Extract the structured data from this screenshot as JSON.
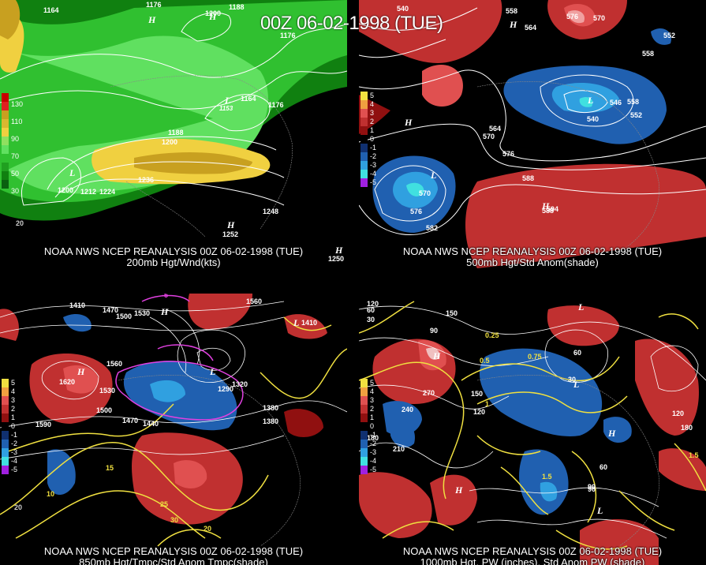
{
  "main_title": "00Z 06-02-1998 (TUE)",
  "panels": [
    {
      "id": "200mb",
      "caption1": "NOAA NWS NCEP REANALYSIS 00Z 06-02-1998 (TUE)",
      "caption2": "200mb Hgt/Wnd(kts)",
      "legend": [
        "130",
        "110",
        "90",
        "70",
        "50",
        "30"
      ],
      "legend_colors": [
        "#c80000",
        "#c8a020",
        "#f0d040",
        "#30c030",
        "#60e060",
        "#108010"
      ],
      "contour_labels": [
        "1164",
        "1176",
        "1200",
        "1188",
        "1176",
        "1164",
        "1176",
        "1188",
        "1200",
        "1236",
        "1200",
        "1212",
        "1224",
        "1248",
        "1252",
        "1250",
        "20",
        "1153"
      ],
      "hl_marks": [
        "H",
        "L",
        "L",
        "H",
        "H",
        "H"
      ]
    },
    {
      "id": "500mb",
      "caption1": "NOAA NWS NCEP REANALYSIS 00Z 06-02-1998 (TUE)",
      "caption2": "500mb Hgt/Std Anom(shade)",
      "legend": [
        "5",
        "4",
        "3",
        "2",
        "1",
        "0",
        "-1",
        "-2",
        "-3",
        "-4",
        "-5"
      ],
      "legend_colors": [
        "#f0e040",
        "#f0a040",
        "#e05050",
        "#c03030",
        "#901010",
        "#000000",
        "#103070",
        "#2060b0",
        "#30a0e0",
        "#40e0e0",
        "#a020e0"
      ],
      "contour_labels": [
        "540",
        "558",
        "576",
        "570",
        "552",
        "558",
        "564",
        "570",
        "576",
        "588",
        "594",
        "582",
        "576",
        "570",
        "564",
        "552",
        "546",
        "540",
        "558",
        "588"
      ],
      "hl_marks": [
        "H",
        "L",
        "H",
        "L",
        "H"
      ]
    },
    {
      "id": "850mb",
      "caption1": "NOAA NWS NCEP REANALYSIS 00Z 06-02-1998 (TUE)",
      "caption2": "850mb Hgt/Tmpc/Std Anom Tmpc(shade)",
      "legend": [
        "5",
        "4",
        "3",
        "2",
        "1",
        "0",
        "-1",
        "-2",
        "-3",
        "-4",
        "-5"
      ],
      "legend_colors": [
        "#f0e040",
        "#f0a040",
        "#e05050",
        "#c03030",
        "#901010",
        "#000000",
        "#103070",
        "#2060b0",
        "#30a0e0",
        "#40e0e0",
        "#a020e0"
      ],
      "contour_labels": [
        "1380",
        "1410",
        "1470",
        "1500",
        "1530",
        "1560",
        "1590",
        "1620",
        "1560",
        "1530",
        "1500",
        "1470",
        "1440",
        "1410",
        "1380",
        "1290",
        "1320",
        "10",
        "15",
        "20",
        "25",
        "30",
        "-5",
        "20"
      ],
      "hl_marks": [
        "H",
        "L",
        "H",
        "L"
      ]
    },
    {
      "id": "1000mb",
      "caption1": "NOAA NWS NCEP REANALYSIS 00Z 06-02-1998 (TUE)",
      "caption2": "1000mb Hgt, PW (inches), Std Anom PW (shade)",
      "legend": [
        "5",
        "4",
        "3",
        "2",
        "1",
        "0",
        "-1",
        "-2",
        "-3",
        "-4",
        "-5"
      ],
      "legend_colors": [
        "#f0e040",
        "#f0a040",
        "#e05050",
        "#c03030",
        "#901010",
        "#000000",
        "#103070",
        "#2060b0",
        "#30a0e0",
        "#40e0e0",
        "#a020e0"
      ],
      "contour_labels": [
        "30",
        "60",
        "90",
        "120",
        "150",
        "180",
        "210",
        "240",
        "270",
        "150",
        "120",
        "90",
        "60",
        "30",
        "0.25",
        "0.5",
        "0.75",
        "1.5",
        "1",
        "60",
        "90",
        "180",
        "120",
        "1.5"
      ],
      "hl_marks": [
        "H",
        "L",
        "H",
        "L",
        "H",
        "L"
      ]
    }
  ]
}
